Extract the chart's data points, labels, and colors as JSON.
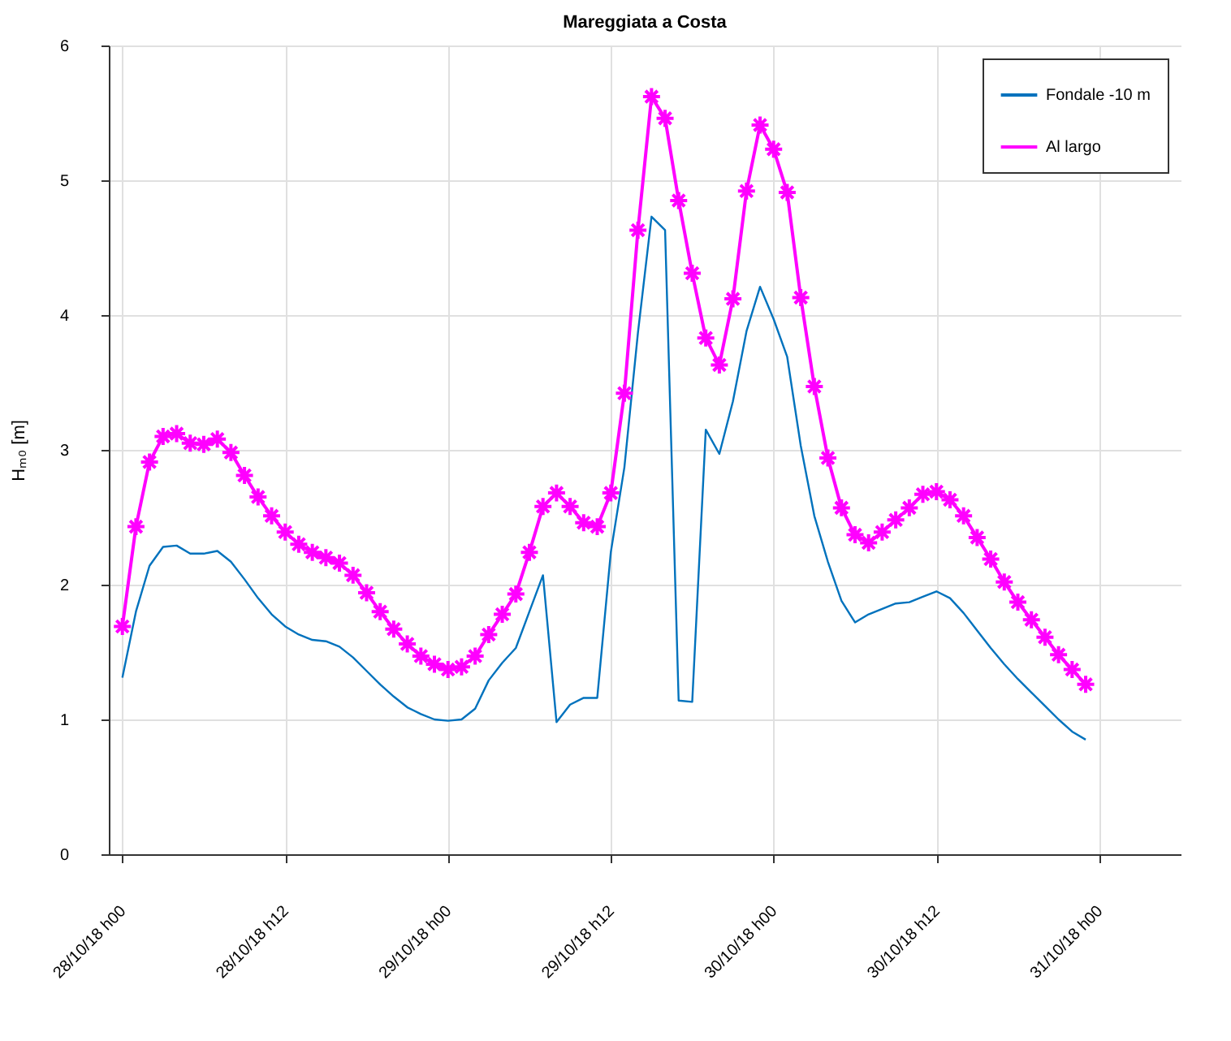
{
  "chart_data": {
    "type": "line",
    "title": "Mareggiata a Costa",
    "ylabel": "Hₘ₀ [m]",
    "x": [
      "--10-28T00:00",
      "--10-28T01:00",
      "--10-28T02:00",
      "--10-28T03:00",
      "--10-28T04:00",
      "--10-28T05:00",
      "--10-28T06:00",
      "--10-28T07:00",
      "--10-28T08:00",
      "--10-28T09:00",
      "--10-28T10:00",
      "--10-28T11:00",
      "--10-28T12:00",
      "--10-28T13:00",
      "--10-28T14:00",
      "--10-28T15:00",
      "--10-28T16:00",
      "--10-28T17:00",
      "--10-28T18:00",
      "--10-28T19:00",
      "--10-28T20:00",
      "--10-28T21:00",
      "--10-28T22:00",
      "--10-28T23:00",
      "--10-29T00:00",
      "--10-29T01:00",
      "--10-29T02:00",
      "--10-29T03:00",
      "--10-29T04:00",
      "--10-29T05:00",
      "--10-29T06:00",
      "--10-29T07:00",
      "--10-29T08:00",
      "--10-29T09:00",
      "--10-29T10:00",
      "--10-29T11:00",
      "--10-29T12:00",
      "--10-29T13:00",
      "--10-29T14:00",
      "--10-29T15:00",
      "--10-29T16:00",
      "--10-29T17:00",
      "--10-29T18:00",
      "--10-29T19:00",
      "--10-29T20:00",
      "--10-29T21:00",
      "--10-29T22:00",
      "--10-29T23:00",
      "--10-30T00:00",
      "--10-30T01:00",
      "--10-30T02:00",
      "--10-30T03:00",
      "--10-30T04:00",
      "--10-30T05:00",
      "--10-30T06:00",
      "--10-30T07:00",
      "--10-30T08:00",
      "--10-30T09:00",
      "--10-30T10:00",
      "--10-30T11:00",
      "--10-30T12:00",
      "--10-30T13:00",
      "--10-30T14:00",
      "--10-30T15:00",
      "--10-30T16:00",
      "--10-30T17:00",
      "--10-30T18:00",
      "--10-30T19:00",
      "--10-30T20:00",
      "--10-30T21:00",
      "--10-30T22:00",
      "--10-30T23:00"
    ],
    "series": [
      {
        "name": "Fondale -10 m",
        "color": "#0072bd",
        "marker": "none",
        "values": [
          1.31,
          1.8,
          2.14,
          2.28,
          2.29,
          2.23,
          2.23,
          2.25,
          2.17,
          2.04,
          1.9,
          1.78,
          1.69,
          1.63,
          1.59,
          1.58,
          1.54,
          1.46,
          1.36,
          1.26,
          1.17,
          1.09,
          1.04,
          1.0,
          0.99,
          1.0,
          1.08,
          1.29,
          1.42,
          1.53,
          1.8,
          2.07,
          0.98,
          1.11,
          1.16,
          1.16,
          2.24,
          2.87,
          3.87,
          4.73,
          4.63,
          1.14,
          1.13,
          3.15,
          2.97,
          3.36,
          3.88,
          4.21,
          3.97,
          3.69,
          3.03,
          2.51,
          2.17,
          1.88,
          1.72,
          1.78,
          1.82,
          1.86,
          1.87,
          1.91,
          1.95,
          1.9,
          1.79,
          1.66,
          1.53,
          1.41,
          1.3,
          1.2,
          1.1,
          1.0,
          0.91,
          0.85
        ]
      },
      {
        "name": "Al largo",
        "color": "#ff00ff",
        "marker": "cross",
        "values": [
          1.69,
          2.43,
          2.91,
          3.1,
          3.12,
          3.05,
          3.04,
          3.08,
          2.98,
          2.81,
          2.65,
          2.51,
          2.39,
          2.3,
          2.24,
          2.2,
          2.16,
          2.07,
          1.94,
          1.8,
          1.67,
          1.56,
          1.47,
          1.41,
          1.37,
          1.39,
          1.47,
          1.63,
          1.78,
          1.93,
          2.24,
          2.58,
          2.68,
          2.58,
          2.46,
          2.43,
          2.68,
          3.42,
          4.63,
          5.62,
          5.46,
          4.85,
          4.31,
          3.83,
          3.63,
          4.12,
          4.92,
          5.41,
          5.23,
          4.91,
          4.13,
          3.47,
          2.94,
          2.57,
          2.37,
          2.31,
          2.39,
          2.48,
          2.57,
          2.67,
          2.69,
          2.63,
          2.51,
          2.35,
          2.19,
          2.02,
          1.87,
          1.74,
          1.61,
          1.48,
          1.37,
          1.26
        ]
      }
    ],
    "xlim": [
      "--10-27T23:00",
      "--10-31T06:00"
    ],
    "xticks": [
      {
        "value": "--10-28T00:00",
        "label": "28/10/18 h00"
      },
      {
        "value": "--10-28T12:00",
        "label": "28/10/18 h12"
      },
      {
        "value": "--10-29T00:00",
        "label": "29/10/18 h00"
      },
      {
        "value": "--10-29T12:00",
        "label": "29/10/18 h12"
      },
      {
        "value": "--10-30T00:00",
        "label": "30/10/18 h00"
      },
      {
        "value": "--10-30T12:00",
        "label": "30/10/18 h12"
      },
      {
        "value": "--10-31T00:00",
        "label": "31/10/18 h00"
      }
    ],
    "ylim": [
      0,
      6
    ],
    "yticks": [
      0,
      1,
      2,
      3,
      4,
      5,
      6
    ],
    "grid": true,
    "legend": "top right",
    "line_style": "solid"
  }
}
